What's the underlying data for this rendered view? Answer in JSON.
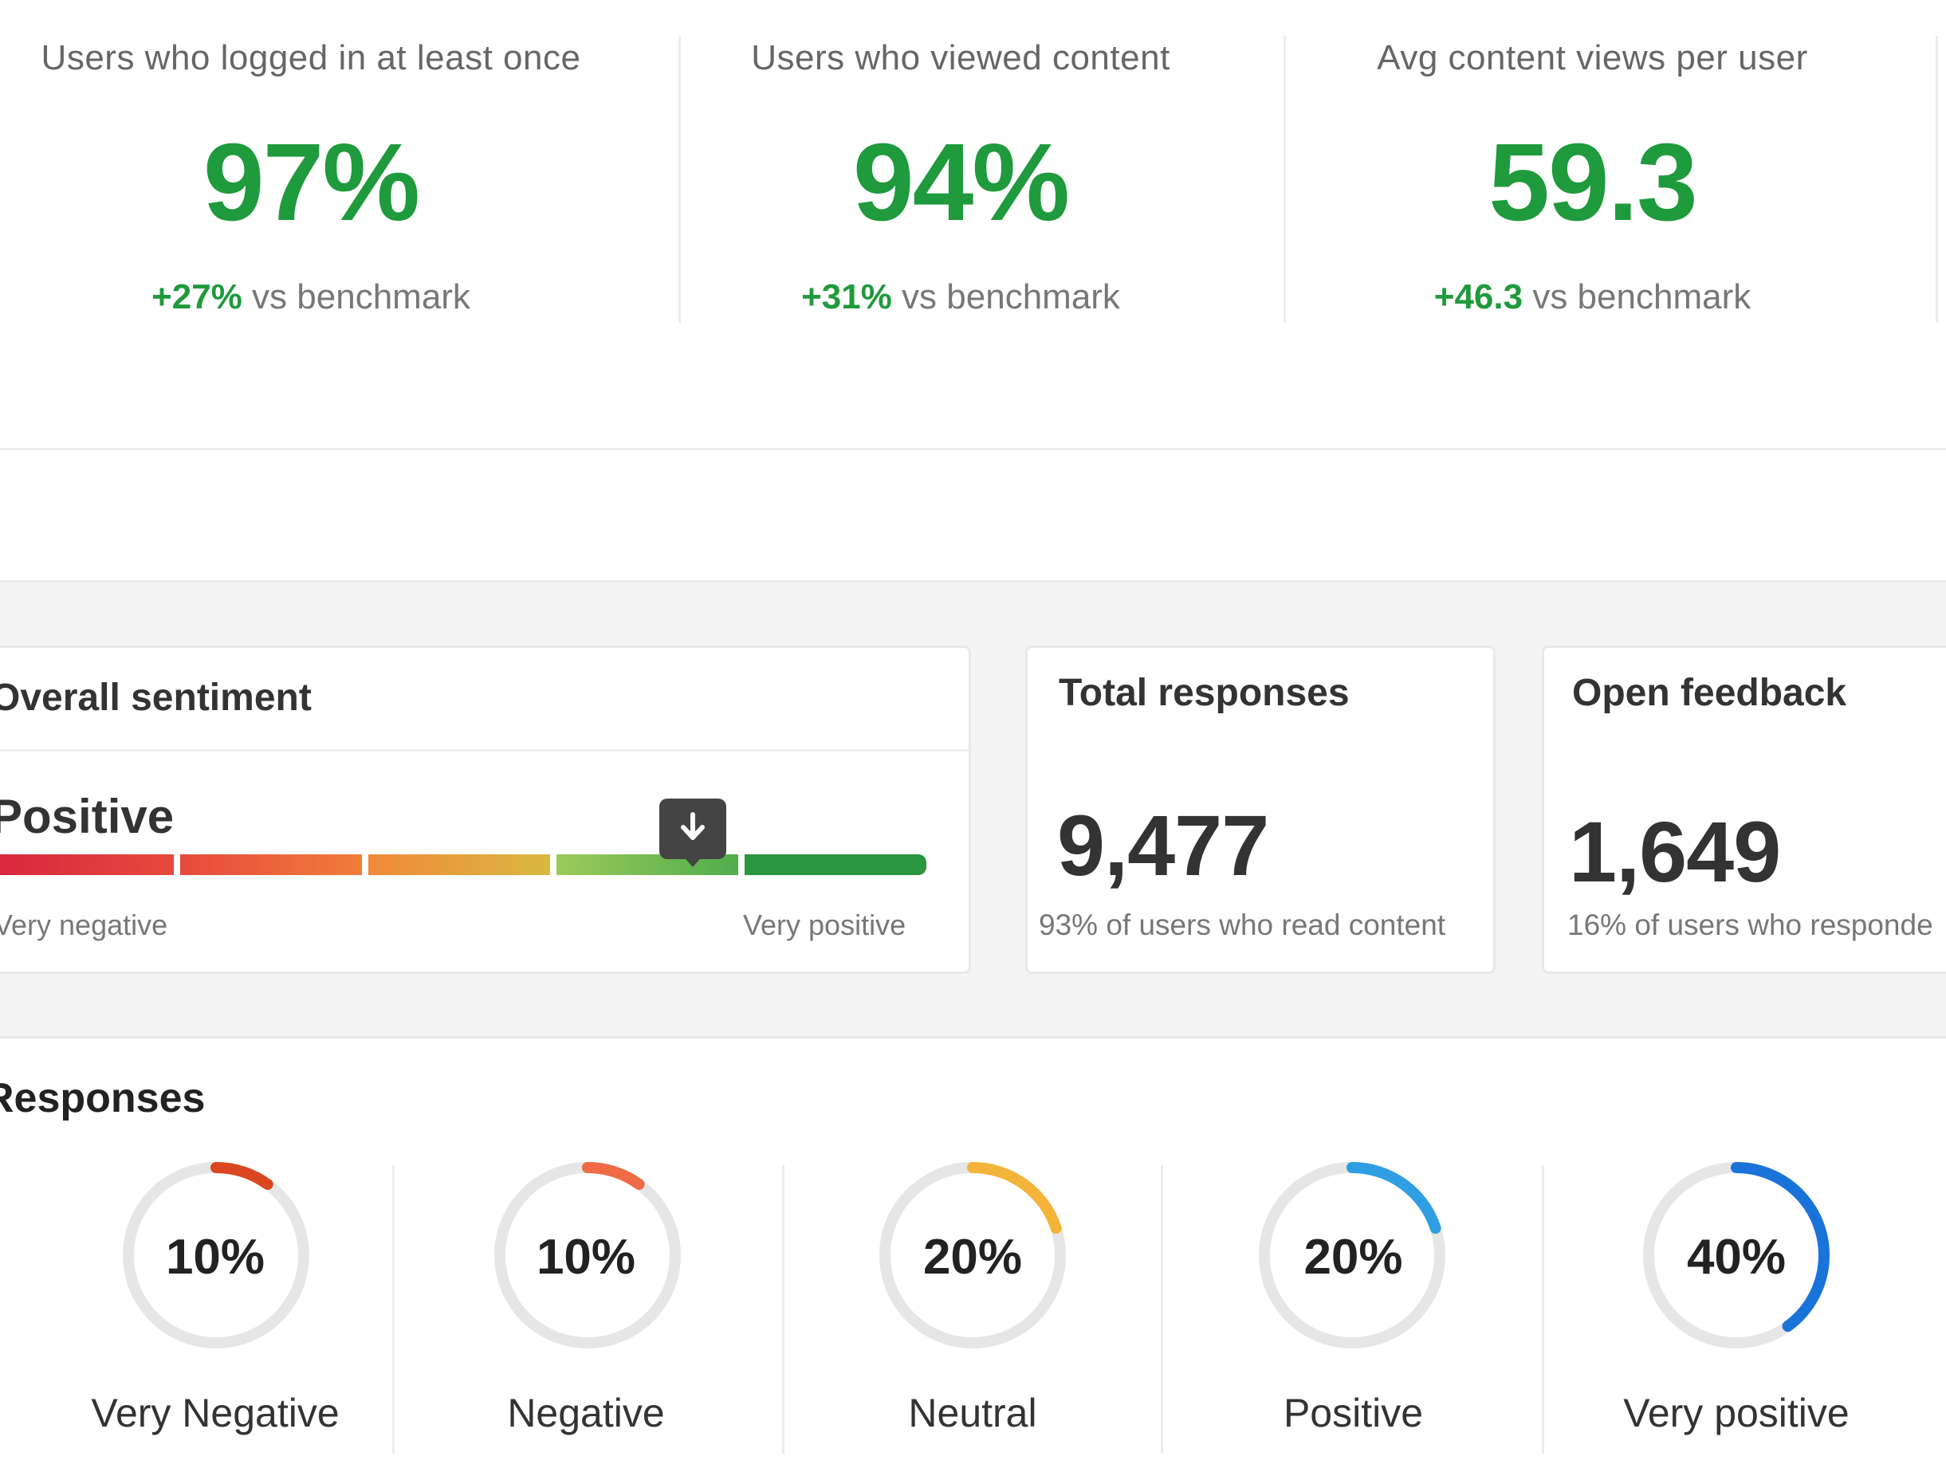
{
  "kpis": [
    {
      "label": "Users who logged in at least once",
      "value": "97%",
      "delta": "+27%",
      "delta_suffix": " vs benchmark"
    },
    {
      "label": "Users who viewed content",
      "value": "94%",
      "delta": "+31%",
      "delta_suffix": " vs benchmark"
    },
    {
      "label": "Avg content views per user",
      "value": "59.3",
      "delta": "+46.3",
      "delta_suffix": " vs benchmark"
    }
  ],
  "sentiment": {
    "title": "Overall sentiment",
    "value": "Positive",
    "scale_min_label": "Very negative",
    "scale_max_label": "Very positive",
    "marker_segment": 4,
    "segment_colors": [
      "#d8253f",
      "#ee6a3a",
      "#f2a73c",
      "#7cc75a",
      "#2a9640"
    ]
  },
  "total_responses": {
    "title": "Total responses",
    "value": "9,477",
    "sub": "93% of users who read content"
  },
  "open_feedback": {
    "title": "Open feedback",
    "value": "1,649",
    "sub": "16% of users who responde"
  },
  "responses": {
    "title": "Responses",
    "items": [
      {
        "label": "Very Negative",
        "pct_text": "10%",
        "fraction": 0.1,
        "color": "#d9461f"
      },
      {
        "label": "Negative",
        "pct_text": "10%",
        "fraction": 0.1,
        "color": "#ef6a45"
      },
      {
        "label": "Neutral",
        "pct_text": "20%",
        "fraction": 0.2,
        "color": "#f4b43a"
      },
      {
        "label": "Positive",
        "pct_text": "20%",
        "fraction": 0.2,
        "color": "#2f9ee3"
      },
      {
        "label": "Very positive",
        "pct_text": "40%",
        "fraction": 0.4,
        "color": "#1a73d9"
      }
    ]
  },
  "colors": {
    "accent_green": "#1f9a3c",
    "track_grey": "#e6e6e6"
  }
}
